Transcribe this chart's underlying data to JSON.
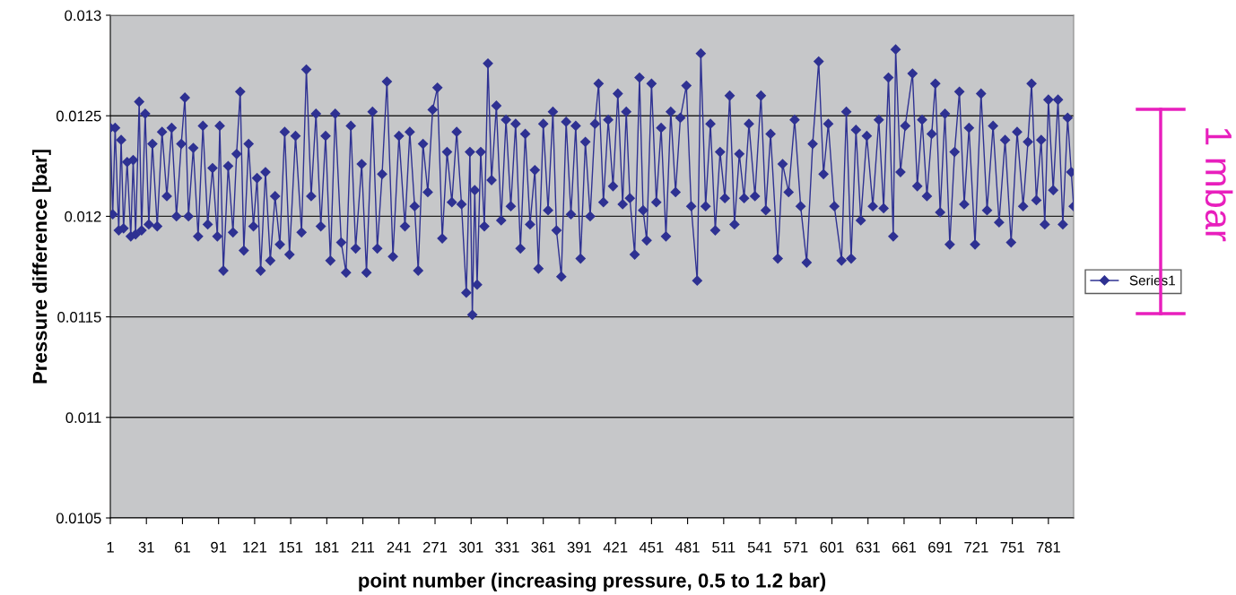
{
  "chart_data": {
    "type": "line",
    "xlabel": "point number (increasing pressure, 0.5 to 1.2 bar)",
    "ylabel": "Pressure difference [bar]",
    "x": [
      1,
      3,
      5,
      8,
      10,
      12,
      15,
      18,
      20,
      22,
      25,
      27,
      30,
      33,
      36,
      40,
      44,
      48,
      52,
      56,
      60,
      63,
      66,
      70,
      74,
      78,
      82,
      86,
      90,
      92,
      95,
      99,
      103,
      106,
      109,
      112,
      116,
      120,
      123,
      126,
      130,
      134,
      138,
      142,
      146,
      150,
      155,
      160,
      164,
      168,
      172,
      176,
      180,
      184,
      188,
      193,
      197,
      201,
      205,
      210,
      214,
      219,
      223,
      227,
      231,
      236,
      241,
      246,
      250,
      254,
      257,
      261,
      265,
      269,
      273,
      277,
      281,
      285,
      289,
      293,
      297,
      300,
      302,
      304,
      306,
      309,
      312,
      315,
      318,
      322,
      326,
      330,
      334,
      338,
      342,
      346,
      350,
      354,
      357,
      361,
      365,
      369,
      372,
      376,
      380,
      384,
      388,
      392,
      396,
      400,
      404,
      407,
      411,
      415,
      419,
      423,
      427,
      430,
      433,
      437,
      441,
      444,
      447,
      451,
      455,
      459,
      463,
      467,
      471,
      475,
      480,
      484,
      489,
      492,
      496,
      500,
      504,
      508,
      512,
      516,
      520,
      524,
      528,
      532,
      537,
      542,
      546,
      550,
      556,
      560,
      565,
      570,
      575,
      580,
      585,
      590,
      594,
      598,
      603,
      609,
      613,
      617,
      621,
      625,
      630,
      635,
      640,
      644,
      648,
      652,
      654,
      658,
      662,
      668,
      672,
      676,
      680,
      684,
      687,
      691,
      695,
      699,
      703,
      707,
      711,
      715,
      720,
      725,
      730,
      735,
      740,
      745,
      750,
      755,
      760,
      764,
      767,
      771,
      775,
      778,
      781,
      785,
      789,
      793,
      797,
      800,
      802
    ],
    "series": [
      {
        "name": "Series1",
        "color": "#2e3192",
        "values": [
          0.01244,
          0.01201,
          0.01244,
          0.01193,
          0.01238,
          0.01194,
          0.01227,
          0.0119,
          0.01228,
          0.01191,
          0.01257,
          0.01193,
          0.01251,
          0.01196,
          0.01236,
          0.01195,
          0.01242,
          0.0121,
          0.01244,
          0.012,
          0.01236,
          0.01259,
          0.012,
          0.01234,
          0.0119,
          0.01245,
          0.01196,
          0.01224,
          0.0119,
          0.01245,
          0.01173,
          0.01225,
          0.01192,
          0.01231,
          0.01262,
          0.01183,
          0.01236,
          0.01195,
          0.01219,
          0.01173,
          0.01222,
          0.01178,
          0.0121,
          0.01186,
          0.01242,
          0.01181,
          0.0124,
          0.01192,
          0.01273,
          0.0121,
          0.01251,
          0.01195,
          0.0124,
          0.01178,
          0.01251,
          0.01187,
          0.01172,
          0.01245,
          0.01184,
          0.01226,
          0.01172,
          0.01252,
          0.01184,
          0.01221,
          0.01267,
          0.0118,
          0.0124,
          0.01195,
          0.01242,
          0.01205,
          0.01173,
          0.01236,
          0.01212,
          0.01253,
          0.01264,
          0.01189,
          0.01232,
          0.01207,
          0.01242,
          0.01206,
          0.01162,
          0.01232,
          0.01151,
          0.01213,
          0.01166,
          0.01232,
          0.01195,
          0.01276,
          0.01218,
          0.01255,
          0.01198,
          0.01248,
          0.01205,
          0.01246,
          0.01184,
          0.01241,
          0.01196,
          0.01223,
          0.01174,
          0.01246,
          0.01203,
          0.01252,
          0.01193,
          0.0117,
          0.01247,
          0.01201,
          0.01245,
          0.01179,
          0.01237,
          0.012,
          0.01246,
          0.01266,
          0.01207,
          0.01248,
          0.01215,
          0.01261,
          0.01206,
          0.01252,
          0.01209,
          0.01181,
          0.01269,
          0.01203,
          0.01188,
          0.01266,
          0.01207,
          0.01244,
          0.0119,
          0.01252,
          0.01212,
          0.01249,
          0.01265,
          0.01205,
          0.01168,
          0.01281,
          0.01205,
          0.01246,
          0.01193,
          0.01232,
          0.01209,
          0.0126,
          0.01196,
          0.01231,
          0.01209,
          0.01246,
          0.0121,
          0.0126,
          0.01203,
          0.01241,
          0.01179,
          0.01226,
          0.01212,
          0.01248,
          0.01205,
          0.01177,
          0.01236,
          0.01277,
          0.01221,
          0.01246,
          0.01205,
          0.01178,
          0.01252,
          0.01179,
          0.01243,
          0.01198,
          0.0124,
          0.01205,
          0.01248,
          0.01204,
          0.01269,
          0.0119,
          0.01283,
          0.01222,
          0.01245,
          0.01271,
          0.01215,
          0.01248,
          0.0121,
          0.01241,
          0.01266,
          0.01202,
          0.01251,
          0.01186,
          0.01232,
          0.01262,
          0.01206,
          0.01244,
          0.01186,
          0.01261,
          0.01203,
          0.01245,
          0.01197,
          0.01238,
          0.01187,
          0.01242,
          0.01205,
          0.01237,
          0.01266,
          0.01208,
          0.01238,
          0.01196,
          0.01258,
          0.01213,
          0.01258,
          0.01196,
          0.01249,
          0.01222,
          0.01205
        ]
      }
    ],
    "xlim": [
      1,
      802
    ],
    "xticks": [
      1,
      31,
      61,
      91,
      121,
      151,
      181,
      211,
      241,
      271,
      301,
      331,
      361,
      391,
      421,
      451,
      481,
      511,
      541,
      571,
      601,
      631,
      661,
      691,
      721,
      751,
      781
    ],
    "ylim": [
      0.0105,
      0.013
    ],
    "yticks": [
      0.0105,
      0.011,
      0.0115,
      0.012,
      0.0125,
      0.013
    ],
    "grid": "y",
    "legend": "right",
    "marker": "diamond",
    "line_style": "solid",
    "annotations": [
      "1 mbar"
    ]
  }
}
